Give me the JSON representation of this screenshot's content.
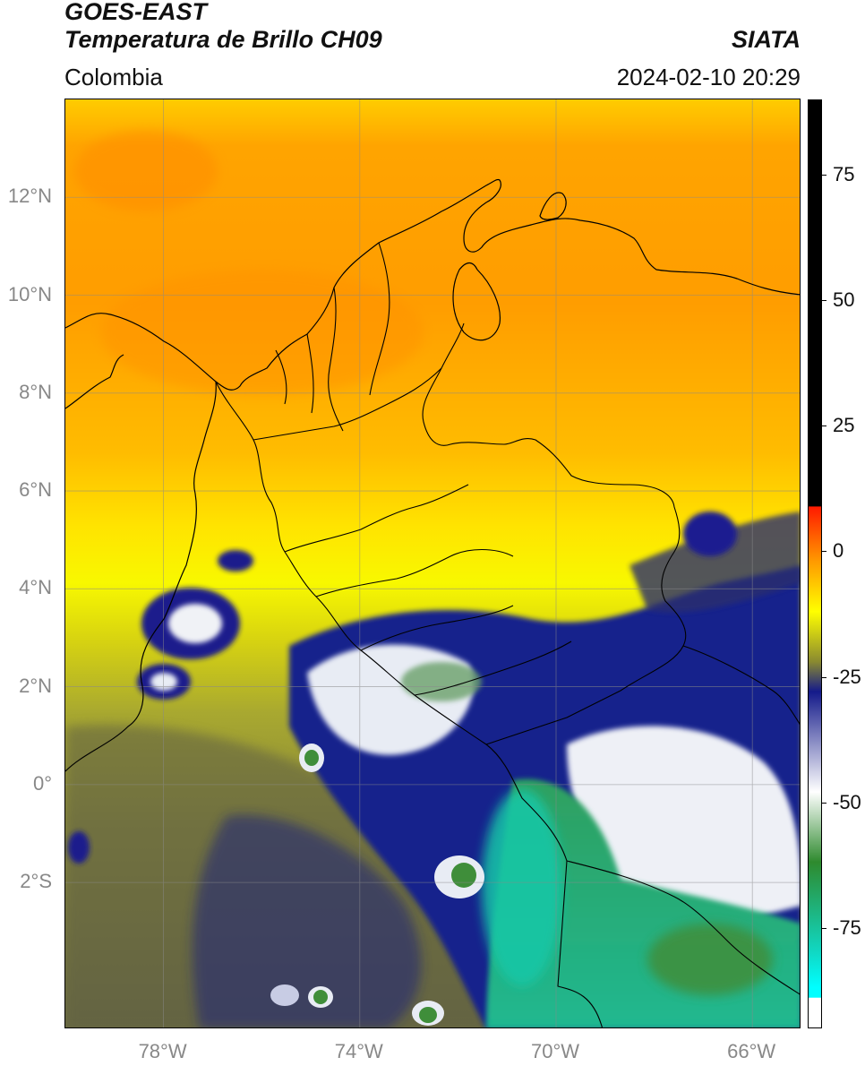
{
  "header": {
    "satellite": "GOES-EAST",
    "product": "Temperatura de Brillo CH09",
    "region": "Colombia",
    "brand": "SIATA",
    "timestamp": "2024-02-10 20:29"
  },
  "map": {
    "lat_ticks": [
      {
        "value": 12,
        "label": "12°N"
      },
      {
        "value": 10,
        "label": "10°N"
      },
      {
        "value": 8,
        "label": "8°N"
      },
      {
        "value": 6,
        "label": "6°N"
      },
      {
        "value": 4,
        "label": "4°N"
      },
      {
        "value": 2,
        "label": "2°N"
      },
      {
        "value": 0,
        "label": "0°"
      },
      {
        "value": -2,
        "label": "2°S"
      }
    ],
    "lon_ticks": [
      {
        "value": -78,
        "label": "78°W"
      },
      {
        "value": -74,
        "label": "74°W"
      },
      {
        "value": -70,
        "label": "70°W"
      },
      {
        "value": -66,
        "label": "66°W"
      }
    ],
    "lat_range": [
      -5.0,
      14.0
    ],
    "lon_range": [
      -80.0,
      -65.0
    ],
    "grid": true
  },
  "colorbar": {
    "range": [
      -95,
      90
    ],
    "ticks": [
      {
        "value": 75,
        "label": "75"
      },
      {
        "value": 50,
        "label": "50"
      },
      {
        "value": 25,
        "label": "25"
      },
      {
        "value": 0,
        "label": "0"
      },
      {
        "value": -25,
        "label": "-25"
      },
      {
        "value": -50,
        "label": "-50"
      },
      {
        "value": -75,
        "label": "-75"
      }
    ],
    "colors": {
      "warm_limit": "#000000",
      "red": "#ff1a00",
      "orange": "#ff9a00",
      "yellow": "#ffff00",
      "olive": "#8a8a30",
      "navy": "#141a8a",
      "white": "#ffffff",
      "green": "#2e8a2e",
      "teal": "#10d8c4",
      "cyan": "#00ffff"
    }
  }
}
